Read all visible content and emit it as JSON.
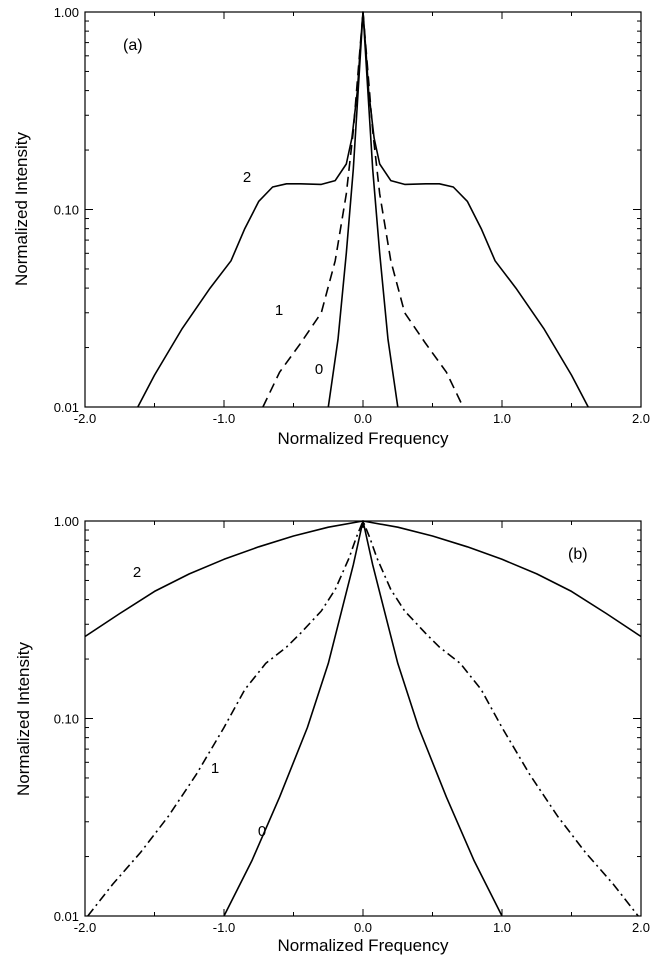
{
  "chart_data": [
    {
      "type": "line",
      "panel_label": "(a)",
      "xlabel": "Normalized Frequency",
      "ylabel": "Normalized Intensity",
      "xlim": [
        -2.0,
        2.0
      ],
      "ylim": [
        0.01,
        1.0
      ],
      "yscale": "log",
      "x_ticks": [
        "-2.0",
        "-1.0",
        "0.0",
        "1.0",
        "2.0"
      ],
      "y_ticks": [
        "0.01",
        "0.10",
        "1.00"
      ],
      "grid": false,
      "series": [
        {
          "name": "2",
          "style": "solid",
          "x": [
            -1.62,
            -1.5,
            -1.3,
            -1.1,
            -0.95,
            -0.85,
            -0.75,
            -0.65,
            -0.55,
            -0.45,
            -0.3,
            -0.2,
            -0.12,
            -0.08,
            -0.04,
            -0.02,
            0.0,
            0.02,
            0.04,
            0.08,
            0.12,
            0.2,
            0.3,
            0.45,
            0.55,
            0.65,
            0.75,
            0.85,
            0.95,
            1.1,
            1.3,
            1.5,
            1.62
          ],
          "y": [
            0.01,
            0.0145,
            0.025,
            0.04,
            0.055,
            0.08,
            0.11,
            0.13,
            0.135,
            0.135,
            0.134,
            0.14,
            0.17,
            0.23,
            0.4,
            0.65,
            1.0,
            0.65,
            0.4,
            0.23,
            0.17,
            0.14,
            0.134,
            0.135,
            0.135,
            0.13,
            0.11,
            0.08,
            0.055,
            0.04,
            0.025,
            0.0145,
            0.01
          ]
        },
        {
          "name": "1",
          "style": "dashed",
          "x": [
            -0.72,
            -0.6,
            -0.45,
            -0.3,
            -0.2,
            -0.12,
            -0.07,
            -0.03,
            0.0,
            0.03,
            0.07,
            0.12,
            0.2,
            0.3,
            0.45,
            0.6,
            0.72
          ],
          "y": [
            0.01,
            0.015,
            0.021,
            0.03,
            0.055,
            0.12,
            0.25,
            0.55,
            1.0,
            0.55,
            0.25,
            0.12,
            0.055,
            0.03,
            0.021,
            0.015,
            0.01
          ]
        },
        {
          "name": "0",
          "style": "solid",
          "x": [
            -0.25,
            -0.18,
            -0.12,
            -0.07,
            -0.03,
            0.0,
            0.03,
            0.07,
            0.12,
            0.18,
            0.25
          ],
          "y": [
            0.01,
            0.022,
            0.06,
            0.16,
            0.45,
            1.0,
            0.45,
            0.16,
            0.06,
            0.022,
            0.01
          ]
        }
      ]
    },
    {
      "type": "line",
      "panel_label": "(b)",
      "xlabel": "Normalized Frequency",
      "ylabel": "Normalized Intensity",
      "xlim": [
        -2.0,
        2.0
      ],
      "ylim": [
        0.01,
        1.0
      ],
      "yscale": "log",
      "x_ticks": [
        "-2.0",
        "-1.0",
        "0.0",
        "1.0",
        "2.0"
      ],
      "y_ticks": [
        "0.01",
        "0.10",
        "1.00"
      ],
      "grid": false,
      "series": [
        {
          "name": "2",
          "style": "solid",
          "x": [
            -2.0,
            -1.75,
            -1.5,
            -1.25,
            -1.0,
            -0.75,
            -0.5,
            -0.25,
            0.0,
            0.25,
            0.5,
            0.75,
            1.0,
            1.25,
            1.5,
            1.75,
            2.0
          ],
          "y": [
            0.26,
            0.34,
            0.44,
            0.54,
            0.64,
            0.74,
            0.84,
            0.93,
            1.0,
            0.93,
            0.84,
            0.74,
            0.64,
            0.54,
            0.44,
            0.34,
            0.26
          ]
        },
        {
          "name": "1",
          "style": "dashdot",
          "x": [
            -1.98,
            -1.8,
            -1.6,
            -1.4,
            -1.2,
            -1.0,
            -0.85,
            -0.7,
            -0.55,
            -0.45,
            -0.3,
            -0.2,
            -0.1,
            -0.05,
            0.0,
            0.05,
            0.1,
            0.2,
            0.3,
            0.45,
            0.55,
            0.7,
            0.85,
            1.0,
            1.2,
            1.4,
            1.6,
            1.8,
            1.98
          ],
          "y": [
            0.01,
            0.0145,
            0.021,
            0.032,
            0.052,
            0.09,
            0.14,
            0.19,
            0.23,
            0.27,
            0.35,
            0.45,
            0.65,
            0.82,
            1.0,
            0.82,
            0.65,
            0.45,
            0.35,
            0.27,
            0.23,
            0.19,
            0.14,
            0.09,
            0.052,
            0.032,
            0.021,
            0.0145,
            0.01
          ]
        },
        {
          "name": "0",
          "style": "solid",
          "x": [
            -1.0,
            -0.8,
            -0.6,
            -0.4,
            -0.25,
            -0.15,
            -0.07,
            0.0,
            0.07,
            0.15,
            0.25,
            0.4,
            0.6,
            0.8,
            1.0
          ],
          "y": [
            0.01,
            0.019,
            0.04,
            0.09,
            0.19,
            0.36,
            0.6,
            1.0,
            0.6,
            0.36,
            0.19,
            0.09,
            0.04,
            0.019,
            0.01
          ]
        }
      ]
    }
  ]
}
